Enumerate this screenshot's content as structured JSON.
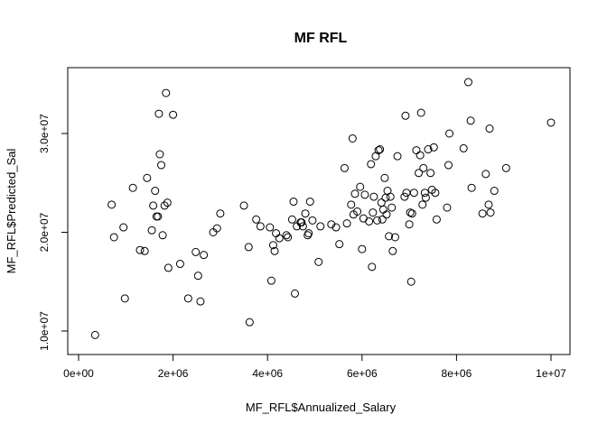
{
  "chart_data": {
    "type": "scatter",
    "title": "MF RFL",
    "xlabel": "MF_RFL$Annualized_Salary",
    "ylabel": "MF_RFL$Predicted_Sal",
    "xlim": [
      0,
      10000000
    ],
    "ylim": [
      9500000,
      35000000
    ],
    "xticks": [
      0,
      2000000,
      4000000,
      6000000,
      8000000,
      10000000
    ],
    "xtick_labels": [
      "0e+00",
      "2e+06",
      "4e+06",
      "6e+06",
      "8e+06",
      "1e+07"
    ],
    "yticks": [
      10000000,
      20000000,
      30000000
    ],
    "ytick_labels": [
      "1.0e+07",
      "2.0e+07",
      "3.0e+07"
    ],
    "grid": false,
    "legend": "none",
    "marker": "open-circle",
    "points": [
      [
        350000,
        9600000
      ],
      [
        700000,
        22800000
      ],
      [
        750000,
        19500000
      ],
      [
        950000,
        20500000
      ],
      [
        980000,
        13300000
      ],
      [
        1150000,
        24500000
      ],
      [
        1300000,
        18200000
      ],
      [
        1400000,
        18100000
      ],
      [
        1450000,
        25500000
      ],
      [
        1550000,
        20200000
      ],
      [
        1580000,
        22700000
      ],
      [
        1620000,
        24200000
      ],
      [
        1650000,
        21600000
      ],
      [
        1680000,
        21600000
      ],
      [
        1700000,
        32000000
      ],
      [
        1720000,
        27900000
      ],
      [
        1750000,
        26800000
      ],
      [
        1780000,
        19700000
      ],
      [
        1820000,
        22700000
      ],
      [
        1850000,
        34100000
      ],
      [
        1880000,
        23000000
      ],
      [
        1900000,
        16400000
      ],
      [
        2000000,
        31900000
      ],
      [
        2150000,
        16800000
      ],
      [
        2320000,
        13300000
      ],
      [
        2480000,
        18000000
      ],
      [
        2530000,
        15600000
      ],
      [
        2580000,
        13000000
      ],
      [
        2650000,
        17700000
      ],
      [
        2850000,
        20000000
      ],
      [
        2930000,
        20400000
      ],
      [
        3000000,
        21900000
      ],
      [
        3500000,
        22700000
      ],
      [
        3600000,
        18500000
      ],
      [
        3620000,
        10900000
      ],
      [
        3760000,
        21300000
      ],
      [
        3850000,
        20600000
      ],
      [
        4050000,
        20500000
      ],
      [
        4080000,
        15100000
      ],
      [
        4120000,
        18700000
      ],
      [
        4150000,
        18100000
      ],
      [
        4180000,
        19900000
      ],
      [
        4250000,
        19400000
      ],
      [
        4400000,
        19700000
      ],
      [
        4430000,
        19500000
      ],
      [
        4520000,
        21300000
      ],
      [
        4550000,
        23100000
      ],
      [
        4580000,
        13800000
      ],
      [
        4620000,
        20600000
      ],
      [
        4700000,
        21000000
      ],
      [
        4720000,
        21000000
      ],
      [
        4750000,
        20600000
      ],
      [
        4800000,
        21900000
      ],
      [
        4850000,
        19700000
      ],
      [
        4870000,
        19900000
      ],
      [
        4900000,
        23100000
      ],
      [
        4950000,
        21200000
      ],
      [
        5080000,
        17000000
      ],
      [
        5120000,
        20600000
      ],
      [
        5350000,
        20800000
      ],
      [
        5450000,
        20500000
      ],
      [
        5520000,
        18800000
      ],
      [
        5630000,
        26500000
      ],
      [
        5680000,
        20900000
      ],
      [
        5770000,
        22800000
      ],
      [
        5800000,
        29500000
      ],
      [
        5820000,
        21800000
      ],
      [
        5850000,
        23900000
      ],
      [
        5900000,
        22100000
      ],
      [
        5960000,
        24600000
      ],
      [
        6000000,
        18300000
      ],
      [
        6030000,
        21400000
      ],
      [
        6060000,
        23800000
      ],
      [
        6150000,
        21100000
      ],
      [
        6190000,
        26900000
      ],
      [
        6210000,
        16500000
      ],
      [
        6230000,
        22000000
      ],
      [
        6250000,
        23600000
      ],
      [
        6290000,
        27700000
      ],
      [
        6320000,
        21200000
      ],
      [
        6350000,
        28300000
      ],
      [
        6380000,
        28400000
      ],
      [
        6410000,
        23000000
      ],
      [
        6430000,
        21300000
      ],
      [
        6450000,
        22300000
      ],
      [
        6480000,
        25500000
      ],
      [
        6500000,
        23500000
      ],
      [
        6520000,
        21800000
      ],
      [
        6540000,
        24200000
      ],
      [
        6570000,
        19600000
      ],
      [
        6600000,
        23600000
      ],
      [
        6630000,
        22500000
      ],
      [
        6650000,
        18100000
      ],
      [
        6700000,
        19500000
      ],
      [
        6750000,
        27700000
      ],
      [
        6900000,
        23600000
      ],
      [
        6920000,
        31800000
      ],
      [
        6940000,
        24000000
      ],
      [
        7000000,
        20800000
      ],
      [
        7020000,
        22000000
      ],
      [
        7040000,
        15000000
      ],
      [
        7060000,
        21900000
      ],
      [
        7100000,
        24000000
      ],
      [
        7150000,
        28300000
      ],
      [
        7200000,
        26000000
      ],
      [
        7230000,
        27800000
      ],
      [
        7250000,
        32100000
      ],
      [
        7280000,
        22800000
      ],
      [
        7300000,
        26500000
      ],
      [
        7330000,
        24000000
      ],
      [
        7350000,
        23500000
      ],
      [
        7400000,
        28400000
      ],
      [
        7450000,
        26000000
      ],
      [
        7480000,
        24300000
      ],
      [
        7520000,
        28600000
      ],
      [
        7550000,
        24000000
      ],
      [
        7580000,
        21300000
      ],
      [
        7800000,
        22500000
      ],
      [
        7830000,
        26800000
      ],
      [
        7850000,
        30000000
      ],
      [
        8150000,
        28500000
      ],
      [
        8250000,
        35200000
      ],
      [
        8300000,
        31300000
      ],
      [
        8320000,
        24500000
      ],
      [
        8550000,
        21900000
      ],
      [
        8620000,
        25900000
      ],
      [
        8680000,
        22800000
      ],
      [
        8700000,
        30500000
      ],
      [
        8720000,
        22000000
      ],
      [
        8800000,
        24200000
      ],
      [
        9050000,
        26500000
      ],
      [
        10000000,
        31100000
      ]
    ]
  }
}
